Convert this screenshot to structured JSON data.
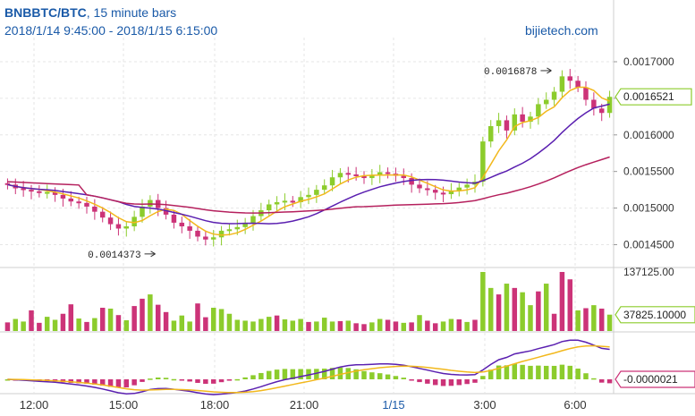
{
  "header": {
    "symbol": "BNBBTC/BTC",
    "interval": ", 15 minute bars",
    "range": "2018/1/14 9:45:00 - 2018/1/15 6:15:00",
    "brand": "bijietech.com"
  },
  "colors": {
    "up": "#8ccc2c",
    "down": "#cc3378",
    "ma_fast": "#f2b81c",
    "ma_mid": "#5a1fb0",
    "ma_slow": "#b5205d",
    "axis_text": "#333333",
    "date_text": "#1a5aa8",
    "grid": "#e6e6e6"
  },
  "chart_data": {
    "type": "candlestick",
    "x_ticks": [
      "12:00",
      "15:00",
      "18:00",
      "21:00",
      "1/15",
      "3:00",
      "6:00"
    ],
    "price_panel": {
      "y_ticks": [
        "0.0017000",
        "0.0016500",
        "0.0016000",
        "0.0015500",
        "0.0015000",
        "0.0014500"
      ],
      "y_tick_values": [
        0.0017,
        0.00165,
        0.0016,
        0.00155,
        0.0015,
        0.00145
      ],
      "ylim": [
        0.00142,
        0.001733
      ],
      "last_price": "0.0016521",
      "annotations": [
        {
          "label": "0.0016878",
          "value": 0.0016878,
          "candle": 70
        },
        {
          "label": "0.0014373",
          "value": 0.0014373,
          "candle": 20
        }
      ],
      "close": [
        0.001532,
        0.001527,
        0.001525,
        0.001523,
        0.001521,
        0.001522,
        0.001518,
        0.001513,
        0.001509,
        0.001507,
        0.001502,
        0.001495,
        0.001487,
        0.001478,
        0.001472,
        0.001475,
        0.001488,
        0.001502,
        0.001511,
        0.0015,
        0.001491,
        0.00148,
        0.001475,
        0.001469,
        0.001461,
        0.001457,
        0.00146,
        0.001469,
        0.001471,
        0.001474,
        0.00148,
        0.001489,
        0.001497,
        0.001505,
        0.001508,
        0.00151,
        0.001508,
        0.001515,
        0.001518,
        0.001525,
        0.001531,
        0.001542,
        0.001548,
        0.001546,
        0.001544,
        0.001541,
        0.001545,
        0.001549,
        0.001547,
        0.001544,
        0.001541,
        0.001532,
        0.001527,
        0.001525,
        0.001521,
        0.001519,
        0.001524,
        0.001528,
        0.001532,
        0.001536,
        0.001591,
        0.001612,
        0.00162,
        0.001606,
        0.001628,
        0.001618,
        0.001625,
        0.001642,
        0.001648,
        0.001659,
        0.00168,
        0.001674,
        0.001665,
        0.001648,
        0.001636,
        0.00163,
        0.001652
      ]
    },
    "volume_panel": {
      "y_ticks": [
        "137125.00"
      ],
      "y_tick_values": [
        137125
      ],
      "last_volume": "37825.10000",
      "values": [
        20000,
        28000,
        22000,
        48000,
        19000,
        33000,
        26000,
        40000,
        62000,
        29000,
        21000,
        30000,
        54000,
        52000,
        37000,
        25000,
        58000,
        75000,
        85000,
        61000,
        44000,
        24000,
        36000,
        22000,
        64000,
        32000,
        54000,
        51000,
        40000,
        26000,
        24000,
        22000,
        28000,
        33000,
        36000,
        27000,
        24000,
        28000,
        21000,
        22000,
        31000,
        22000,
        23000,
        24000,
        18000,
        16000,
        20000,
        28000,
        26000,
        22000,
        19000,
        20000,
        37000,
        24000,
        18000,
        22000,
        28000,
        27000,
        21000,
        26000,
        137125,
        100000,
        85000,
        110000,
        100000,
        90000,
        60000,
        92000,
        110000,
        40000,
        137125,
        120000,
        48000,
        53000,
        60000,
        52000,
        38000
      ],
      "up_flags": [
        0,
        1,
        1,
        0,
        0,
        1,
        1,
        0,
        0,
        1,
        0,
        1,
        0,
        1,
        0,
        1,
        0,
        0,
        1,
        0,
        0,
        1,
        1,
        1,
        0,
        0,
        1,
        1,
        1,
        1,
        1,
        1,
        1,
        1,
        0,
        1,
        1,
        1,
        0,
        1,
        1,
        1,
        0,
        1,
        0,
        0,
        1,
        1,
        0,
        0,
        1,
        0,
        1,
        0,
        0,
        1,
        1,
        0,
        1,
        0,
        1,
        1,
        0,
        1,
        0,
        1,
        1,
        0,
        1,
        0,
        0,
        0,
        1,
        0,
        1,
        0,
        1
      ]
    },
    "macd_panel": {
      "y_ticks": [
        "-0.0000021"
      ],
      "y_tick_values": [
        -2.1e-06
      ],
      "last_value": "-0.0000021"
    }
  }
}
